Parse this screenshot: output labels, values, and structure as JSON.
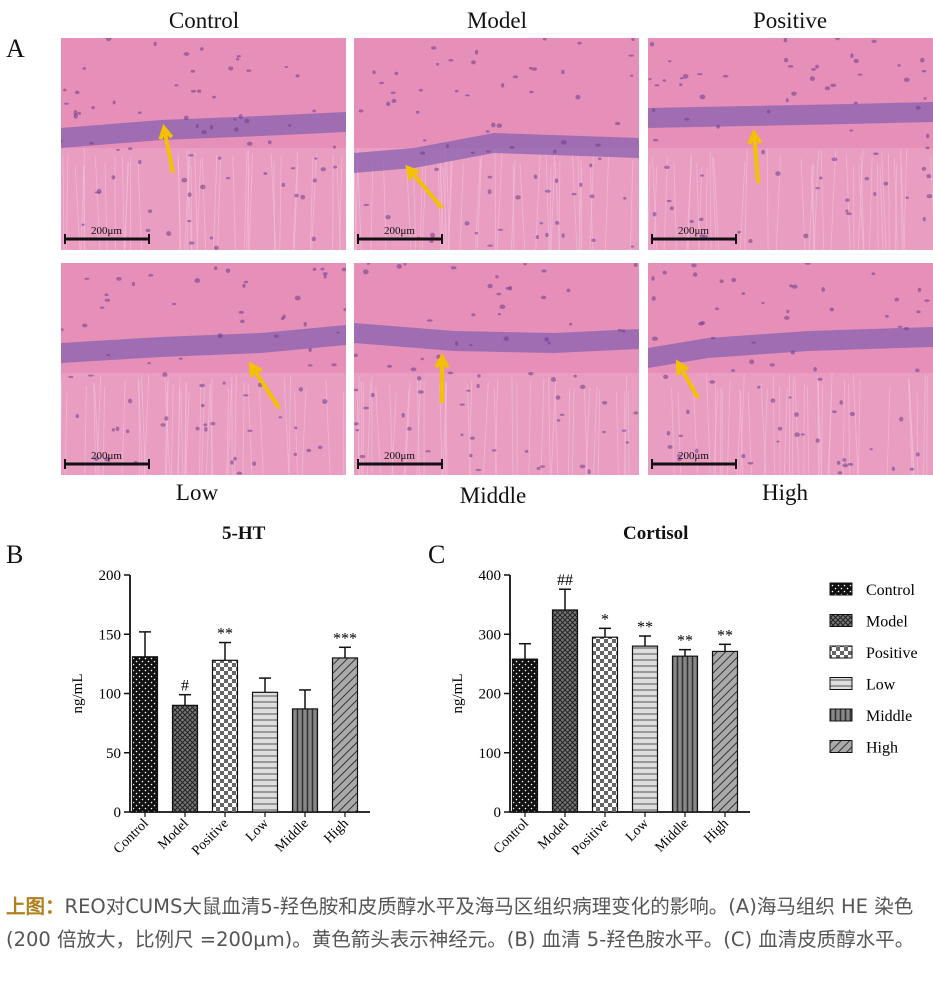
{
  "panel_a": {
    "letter": "A",
    "top_labels": [
      "Control",
      "Model",
      "Positive"
    ],
    "bottom_labels": [
      "Low",
      "Middle",
      "High"
    ],
    "scale_bar_text": "200μm"
  },
  "chart_data": [
    {
      "type": "bar",
      "panel": "B",
      "title": "5-HT",
      "ylabel": "ng/mL",
      "ylim": [
        0,
        200
      ],
      "yticks": [
        0,
        50,
        100,
        150,
        200
      ],
      "categories": [
        "Control",
        "Model",
        "Positive",
        "Low",
        "Middle",
        "High"
      ],
      "values": [
        131,
        90,
        128,
        101,
        87,
        130
      ],
      "errors": [
        21,
        9,
        15,
        12,
        16,
        9
      ],
      "annotations": [
        "",
        "#",
        "**",
        "",
        "",
        "***"
      ]
    },
    {
      "type": "bar",
      "panel": "C",
      "title": "Cortisol",
      "ylabel": "ng/mL",
      "ylim": [
        0,
        400
      ],
      "yticks": [
        0,
        100,
        200,
        300,
        400
      ],
      "categories": [
        "Control",
        "Model",
        "Positive",
        "Low",
        "Middle",
        "High"
      ],
      "values": [
        258,
        341,
        295,
        280,
        263,
        271
      ],
      "errors": [
        26,
        35,
        15,
        17,
        11,
        12
      ],
      "annotations": [
        "",
        "##",
        "*",
        "**",
        "**",
        "**"
      ],
      "legend": [
        "Control",
        "Model",
        "Positive",
        "Low",
        "Middle",
        "High"
      ],
      "legend_position": "right"
    }
  ],
  "caption": {
    "head": "上图：",
    "body": "REO对CUMS大鼠血清5-羟色胺和皮质醇水平及海马区组织病理变化的影响。(A)海马组织 HE 染色 (200 倍放大，比例尺 =200μm)。黄色箭头表示神经元。(B) 血清 5-羟色胺水平。(C) 血清皮质醇水平。"
  },
  "colors": {
    "stain_bg": "#e58fb9",
    "nuclei": "#8a62b0",
    "arrow": "#f2c200",
    "caption_head": "#b08020"
  }
}
